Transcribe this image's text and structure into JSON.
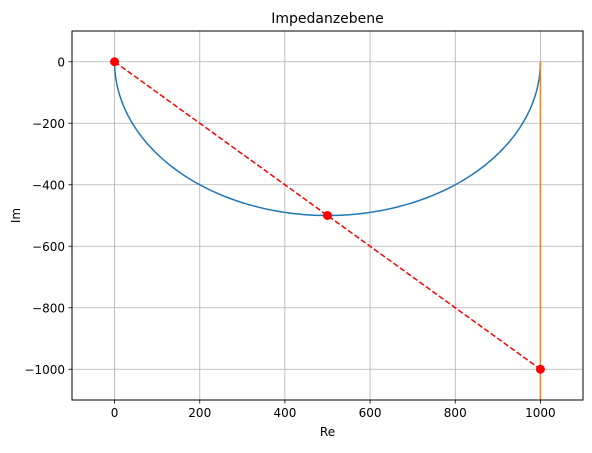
{
  "chart_data": {
    "type": "line",
    "title": "Impedanzebene",
    "xlabel": "Re",
    "ylabel": "Im",
    "xlim": [
      -100,
      1100
    ],
    "ylim": [
      -1100,
      100
    ],
    "grid": true,
    "xticks": [
      0,
      200,
      400,
      600,
      800,
      1000
    ],
    "yticks": [
      0,
      -200,
      -400,
      -600,
      -800,
      -1000
    ],
    "xtick_labels": [
      "0",
      "200",
      "400",
      "600",
      "800",
      "1000"
    ],
    "ytick_labels": [
      "0",
      "−200",
      "−400",
      "−600",
      "−800",
      "−1000"
    ],
    "series": [
      {
        "color": "#1f77b4",
        "style": "solid",
        "shape": "semicircle",
        "center": [
          500,
          0
        ],
        "radius": 500
      },
      {
        "color": "#ff7f0e",
        "style": "solid",
        "x": [
          1000,
          1000
        ],
        "y": [
          0,
          -1100
        ]
      },
      {
        "color": "#ff0000",
        "style": "dashed",
        "markers": true,
        "x": [
          0,
          500,
          1000
        ],
        "y": [
          0,
          -500,
          -1000
        ]
      }
    ]
  }
}
